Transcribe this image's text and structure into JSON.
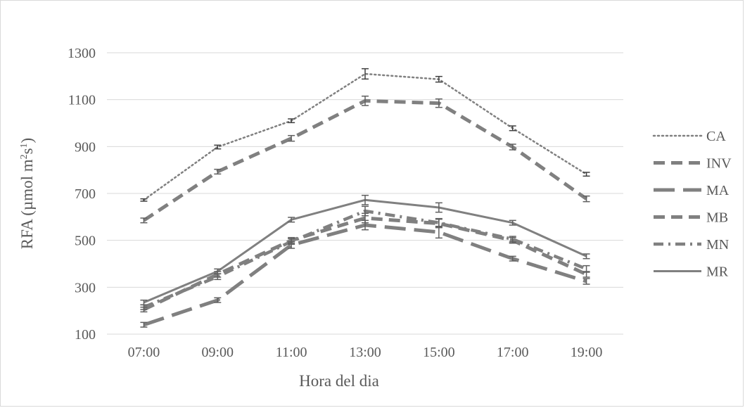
{
  "chart_data": {
    "type": "line",
    "title": "",
    "xlabel": "Hora del dia",
    "ylabel_parts": {
      "main": "RFA (µmol m",
      "sup1": "2",
      "mid": "s",
      "sup2": "1",
      "end": ")"
    },
    "categories": [
      "07:00",
      "09:00",
      "11:00",
      "13:00",
      "15:00",
      "17:00",
      "19:00"
    ],
    "ylim": [
      100,
      1300
    ],
    "yticks": [
      100,
      300,
      500,
      700,
      900,
      1100,
      1300
    ],
    "ytick_labels": [
      "100",
      "300",
      "500",
      "700",
      "900",
      "1100",
      "1300"
    ],
    "grid": true,
    "legend_position": "right",
    "series": [
      {
        "name": "CA",
        "style": "dotted",
        "color": "#808080",
        "values": [
          672,
          898,
          1010,
          1210,
          1187,
          978,
          782
        ],
        "errors": [
          5,
          8,
          8,
          22,
          12,
          10,
          8
        ]
      },
      {
        "name": "INV",
        "style": "dashed",
        "color": "#808080",
        "values": [
          585,
          793,
          935,
          1095,
          1085,
          898,
          677
        ],
        "errors": [
          10,
          10,
          12,
          20,
          18,
          12,
          12
        ]
      },
      {
        "name": "MA",
        "style": "longdash",
        "color": "#808080",
        "values": [
          140,
          245,
          480,
          565,
          535,
          422,
          325
        ],
        "errors": [
          10,
          10,
          14,
          20,
          25,
          10,
          12
        ]
      },
      {
        "name": "MB",
        "style": "dashed",
        "color": "#808080",
        "values": [
          205,
          355,
          500,
          595,
          572,
          500,
          355
        ],
        "errors": [
          10,
          12,
          12,
          20,
          18,
          12,
          12
        ]
      },
      {
        "name": "MN",
        "style": "dashdot",
        "color": "#808080",
        "values": [
          215,
          345,
          495,
          625,
          575,
          505,
          378
        ],
        "errors": [
          10,
          12,
          12,
          20,
          18,
          12,
          14
        ]
      },
      {
        "name": "MR",
        "style": "solid",
        "color": "#808080",
        "values": [
          235,
          368,
          588,
          672,
          640,
          575,
          432
        ],
        "errors": [
          10,
          10,
          10,
          20,
          20,
          10,
          10
        ]
      }
    ],
    "error_bar_color": "#404040"
  }
}
